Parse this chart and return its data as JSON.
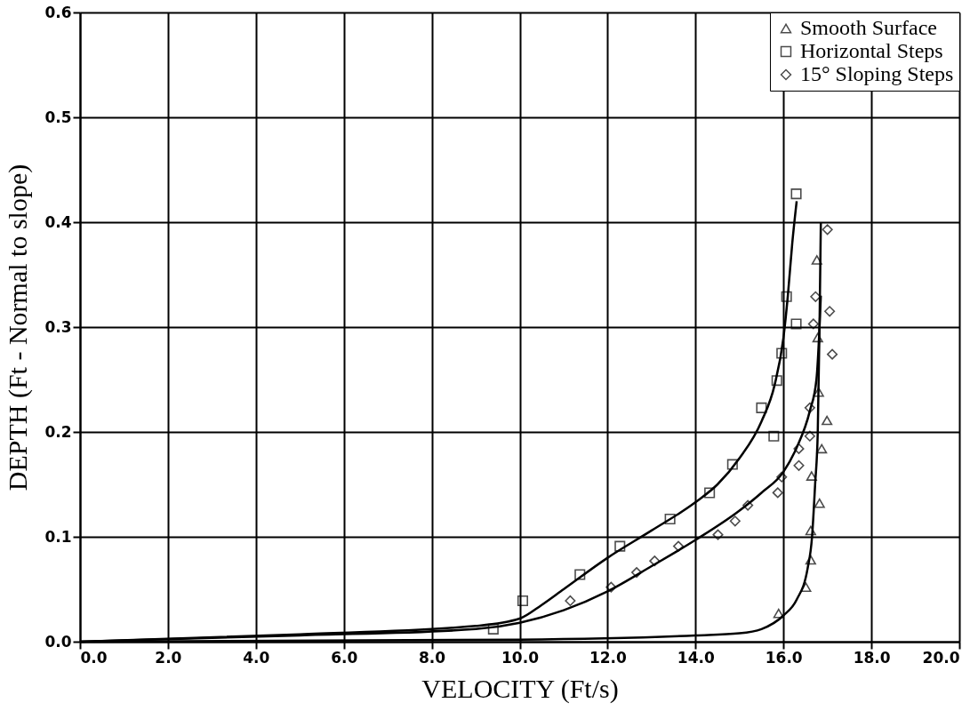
{
  "chart_data": {
    "type": "scatter",
    "xlabel": "VELOCITY   (Ft/s)",
    "ylabel": "DEPTH (Ft - Normal to slope)",
    "xlim": [
      0,
      20
    ],
    "ylim": [
      0,
      0.6
    ],
    "xticks": [
      {
        "value": 0,
        "label": "0.0"
      },
      {
        "value": 2,
        "label": "2.0"
      },
      {
        "value": 4,
        "label": "4.0"
      },
      {
        "value": 6,
        "label": "6.0"
      },
      {
        "value": 8,
        "label": "8.0"
      },
      {
        "value": 10,
        "label": "10.0"
      },
      {
        "value": 12,
        "label": "12.0"
      },
      {
        "value": 14,
        "label": "14.0"
      },
      {
        "value": 16,
        "label": "16.0"
      },
      {
        "value": 18,
        "label": "18.0"
      },
      {
        "value": 20,
        "label": "20.0"
      }
    ],
    "yticks": [
      {
        "value": 0,
        "label": "0.0"
      },
      0.1,
      0.2,
      0.3,
      0.4,
      0.5,
      0.6
    ],
    "grid": true,
    "legend": "top right",
    "series": [
      {
        "name": "Smooth Surface",
        "marker": "triangle",
        "color": "#000000",
        "x": [
          16.76,
          16.78,
          16.8,
          16.99,
          16.87,
          16.64,
          16.82,
          16.62,
          16.62,
          16.51,
          15.89
        ],
        "values": [
          0.364,
          0.29,
          0.238,
          0.211,
          0.184,
          0.158,
          0.132,
          0.106,
          0.078,
          0.052,
          0.027
        ]
      },
      {
        "name": "Horizontal Steps",
        "marker": "square",
        "color": "#000000",
        "x": [
          9.4,
          10.07,
          11.37,
          12.28,
          13.42,
          14.32,
          14.84,
          15.5,
          15.78,
          15.85,
          15.96,
          16.07,
          16.29,
          16.29
        ],
        "values": [
          0.012,
          0.039,
          0.064,
          0.091,
          0.117,
          0.142,
          0.169,
          0.223,
          0.196,
          0.249,
          0.275,
          0.329,
          0.303,
          0.427
        ]
      },
      {
        "name": "15° Sloping Steps",
        "marker": "diamond",
        "color": "#000000",
        "x": [
          11.15,
          12.08,
          12.66,
          13.07,
          13.61,
          14.51,
          14.9,
          15.19,
          15.87,
          15.96,
          16.35,
          16.35,
          16.6,
          16.6,
          16.68,
          16.73,
          17.05,
          17.0,
          17.11
        ],
        "values": [
          0.039,
          0.052,
          0.066,
          0.077,
          0.091,
          0.102,
          0.115,
          0.13,
          0.142,
          0.157,
          0.168,
          0.184,
          0.196,
          0.223,
          0.303,
          0.329,
          0.315,
          0.393,
          0.274
        ]
      },
      {
        "type": "line",
        "color": "#000000",
        "x": [
          0,
          5,
          9,
          10,
          10.5,
          11,
          12,
          13,
          14,
          14.5,
          15,
          15.5,
          15.8,
          16,
          16.1,
          16.2,
          16.3
        ],
        "values": [
          0,
          0.007,
          0.015,
          0.022,
          0.035,
          0.05,
          0.08,
          0.106,
          0.133,
          0.15,
          0.175,
          0.21,
          0.245,
          0.29,
          0.33,
          0.38,
          0.42
        ]
      },
      {
        "type": "line",
        "color": "#000000",
        "x": [
          0,
          5,
          9,
          10,
          11,
          12,
          13,
          14,
          15,
          15.5,
          16,
          16.3,
          16.6,
          16.75,
          16.82,
          16.85
        ],
        "values": [
          0,
          0.006,
          0.012,
          0.018,
          0.03,
          0.048,
          0.072,
          0.097,
          0.125,
          0.142,
          0.162,
          0.185,
          0.22,
          0.25,
          0.3,
          0.33
        ]
      },
      {
        "type": "line",
        "color": "#000000",
        "x": [
          0,
          10,
          14,
          15,
          15.5,
          16,
          16.3,
          16.55,
          16.65,
          16.72,
          16.78,
          16.82,
          16.85
        ],
        "values": [
          0,
          0.002,
          0.006,
          0.008,
          0.012,
          0.025,
          0.04,
          0.07,
          0.1,
          0.15,
          0.2,
          0.3,
          0.4
        ]
      }
    ]
  }
}
